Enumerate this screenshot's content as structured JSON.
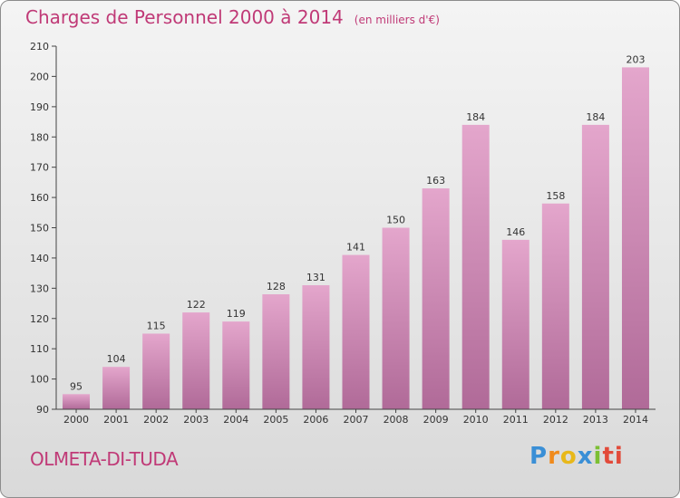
{
  "header": {
    "title": "Charges de Personnel 2000 à 2014",
    "subtitle": "(en milliers d'€)"
  },
  "footer": {
    "commune": "OLMETA-DI-TUDA",
    "brand_letters": [
      "P",
      "r",
      "o",
      "x",
      "i",
      "ti"
    ]
  },
  "colors": {
    "accent": "#c03a77",
    "bar_top": "#e4a6cc",
    "bar_bottom": "#b06a98"
  },
  "chart_data": {
    "type": "bar",
    "categories": [
      "2000",
      "2001",
      "2002",
      "2003",
      "2004",
      "2005",
      "2006",
      "2007",
      "2008",
      "2009",
      "2010",
      "2011",
      "2012",
      "2013",
      "2014"
    ],
    "values": [
      95,
      104,
      115,
      122,
      119,
      128,
      131,
      141,
      150,
      163,
      184,
      146,
      158,
      184,
      203
    ],
    "title": "Charges de Personnel 2000 à 2014",
    "ylabel": "(en milliers d'€)",
    "ylim": [
      90,
      210
    ],
    "yticks": [
      90,
      100,
      110,
      120,
      130,
      140,
      150,
      160,
      170,
      180,
      190,
      200,
      210
    ],
    "grid": false,
    "legend": "none"
  }
}
